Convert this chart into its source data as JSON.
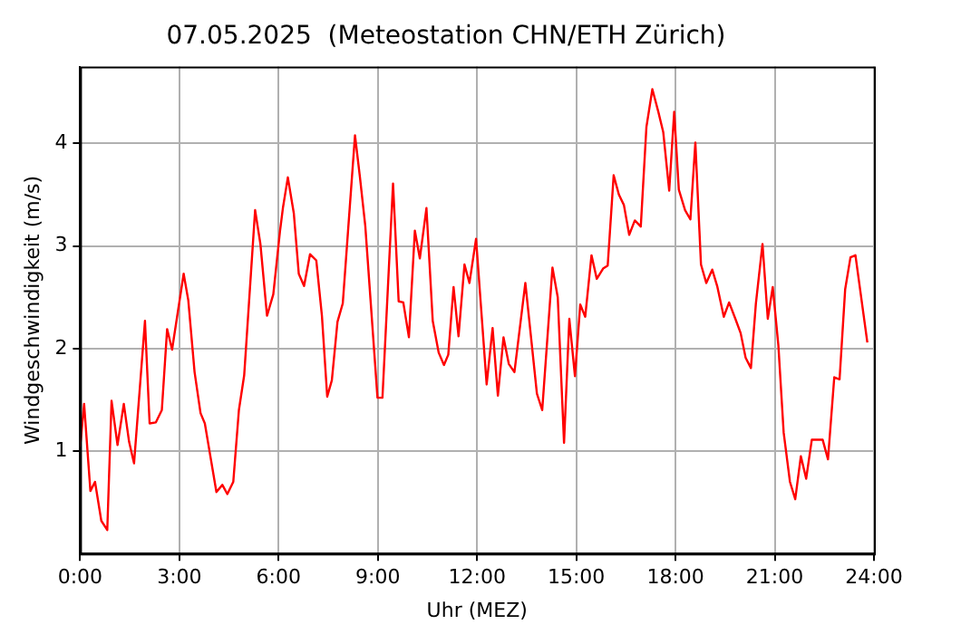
{
  "chart_data": {
    "type": "line",
    "title": "07.05.2025  (Meteostation CHN/ETH Zürich)",
    "xlabel": "Uhr (MEZ)",
    "ylabel": "Windgeschwindigkeit (m/s)",
    "xlim": [
      0,
      24
    ],
    "xticks": [
      {
        "value": 0,
        "label": "0:00"
      },
      {
        "value": 3,
        "label": "3:00"
      },
      {
        "value": 6,
        "label": "6:00"
      },
      {
        "value": 9,
        "label": "9:00"
      },
      {
        "value": 12,
        "label": "12:00"
      },
      {
        "value": 15,
        "label": "15:00"
      },
      {
        "value": 18,
        "label": "18:00"
      },
      {
        "value": 21,
        "label": "21:00"
      },
      {
        "value": 24,
        "label": "24:00"
      }
    ],
    "ylim": [
      0,
      4.75
    ],
    "yticks": [
      1,
      2,
      3,
      4
    ],
    "grid": true,
    "legend": false,
    "marker": "none",
    "line_style": "solid",
    "series": [
      {
        "color": "#ff0000",
        "x": [
          0,
          0.12,
          0.31,
          0.45,
          0.64,
          0.82,
          0.95,
          1.13,
          1.32,
          1.48,
          1.63,
          1.96,
          2.1,
          2.29,
          2.47,
          2.63,
          2.78,
          3.13,
          3.27,
          3.46,
          3.64,
          3.77,
          4.12,
          4.3,
          4.45,
          4.63,
          4.8,
          4.96,
          5.29,
          5.45,
          5.65,
          5.84,
          6.04,
          6.13,
          6.28,
          6.46,
          6.61,
          6.77,
          6.95,
          7.14,
          7.31,
          7.47,
          7.61,
          7.78,
          7.94,
          8.31,
          8.46,
          8.62,
          8.99,
          9.14,
          9.46,
          9.63,
          9.77,
          9.94,
          10.12,
          10.27,
          10.47,
          10.66,
          10.84,
          11,
          11.13,
          11.29,
          11.44,
          11.62,
          11.77,
          11.97,
          12.29,
          12.47,
          12.63,
          12.8,
          12.96,
          13.13,
          13.46,
          13.81,
          13.97,
          14.28,
          14.44,
          14.63,
          14.79,
          14.96,
          15.12,
          15.27,
          15.46,
          15.62,
          15.81,
          15.95,
          16.13,
          16.29,
          16.44,
          16.6,
          16.77,
          16.95,
          17.12,
          17.3,
          17.48,
          17.63,
          17.81,
          17.96,
          18.1,
          18.29,
          18.45,
          18.6,
          18.77,
          18.93,
          19.11,
          19.26,
          19.46,
          19.62,
          19.81,
          19.97,
          20.12,
          20.28,
          20.43,
          20.63,
          20.79,
          20.94,
          21.11,
          21.27,
          21.46,
          21.62,
          21.79,
          21.95,
          22.12,
          22.28,
          22.45,
          22.61,
          22.8,
          22.96,
          23.13,
          23.29,
          23.44,
          23.8
        ],
        "values": [
          1.04,
          1.46,
          0.61,
          0.7,
          0.32,
          0.23,
          1.49,
          1.06,
          1.46,
          1.09,
          0.88,
          2.27,
          1.27,
          1.28,
          1.4,
          2.19,
          1.99,
          2.73,
          2.47,
          1.77,
          1.37,
          1.27,
          0.6,
          0.67,
          0.58,
          0.7,
          1.4,
          1.74,
          3.35,
          3.02,
          2.32,
          2.53,
          3.14,
          3.37,
          3.67,
          3.32,
          2.73,
          2.61,
          2.92,
          2.86,
          2.32,
          1.53,
          1.69,
          2.26,
          2.44,
          4.08,
          3.67,
          3.2,
          1.52,
          1.52,
          3.61,
          2.46,
          2.45,
          2.11,
          3.15,
          2.88,
          3.37,
          2.27,
          1.96,
          1.84,
          1.94,
          2.6,
          2.12,
          2.82,
          2.64,
          3.07,
          1.65,
          2.2,
          1.54,
          2.11,
          1.85,
          1.77,
          2.64,
          1.56,
          1.4,
          2.79,
          2.5,
          1.08,
          2.29,
          1.73,
          2.43,
          2.31,
          2.91,
          2.68,
          2.78,
          2.81,
          3.69,
          3.5,
          3.4,
          3.11,
          3.25,
          3.19,
          4.16,
          4.53,
          4.31,
          4.11,
          3.54,
          4.31,
          3.55,
          3.35,
          3.26,
          4.01,
          2.82,
          2.64,
          2.77,
          2.61,
          2.31,
          2.45,
          2.29,
          2.15,
          1.91,
          1.81,
          2.44,
          3.02,
          2.29,
          2.6,
          2.03,
          1.18,
          0.7,
          0.53,
          0.95,
          0.73,
          1.11,
          1.11,
          1.11,
          0.92,
          1.72,
          1.7,
          2.58,
          2.89,
          2.91,
          2.06
        ]
      }
    ]
  }
}
